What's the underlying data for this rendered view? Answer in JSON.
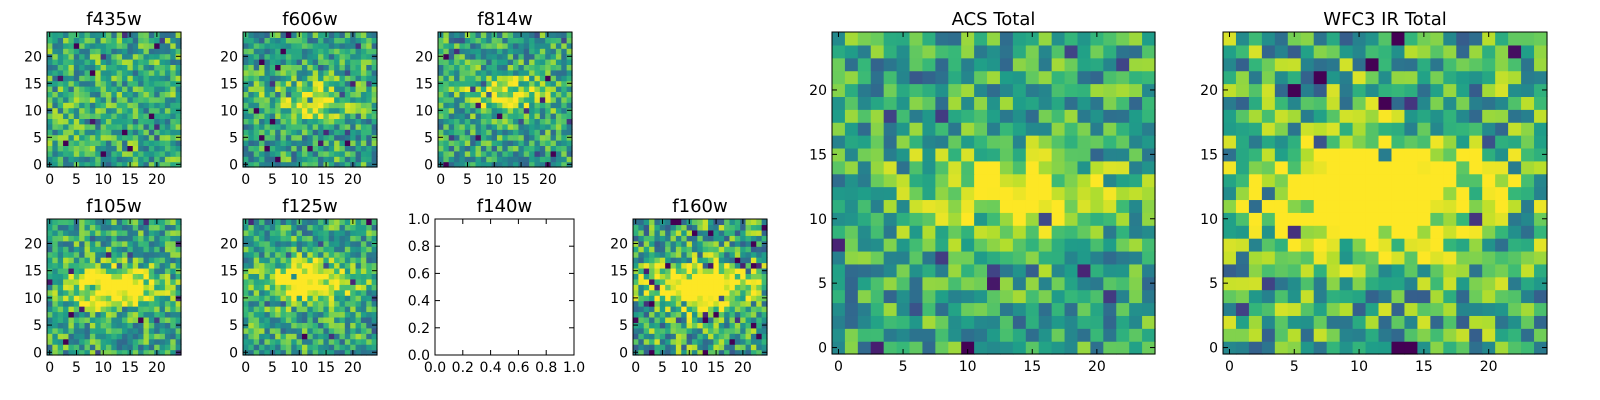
{
  "chart_data": [
    {
      "type": "heatmap",
      "title": "f435w",
      "colormap": "viridis",
      "pixels": [
        25,
        25
      ],
      "xticks": [
        0,
        5,
        10,
        15,
        20
      ],
      "yticks": [
        0,
        5,
        10,
        15,
        20
      ],
      "xlim": [
        -0.5,
        24.5
      ],
      "ylim": [
        -0.5,
        24.5
      ],
      "bright_center": null,
      "contrast": 0.25,
      "seed": 11
    },
    {
      "type": "heatmap",
      "title": "f606w",
      "colormap": "viridis",
      "pixels": [
        25,
        25
      ],
      "xticks": [
        0,
        5,
        10,
        15,
        20
      ],
      "yticks": [
        0,
        5,
        10,
        15,
        20
      ],
      "xlim": [
        -0.5,
        24.5
      ],
      "ylim": [
        -0.5,
        24.5
      ],
      "bright_center": [
        12,
        12
      ],
      "contrast": 0.35,
      "seed": 23
    },
    {
      "type": "heatmap",
      "title": "f814w",
      "colormap": "viridis",
      "pixels": [
        25,
        25
      ],
      "xticks": [
        0,
        5,
        10,
        15,
        20
      ],
      "yticks": [
        0,
        5,
        10,
        15,
        20
      ],
      "xlim": [
        -0.5,
        24.5
      ],
      "ylim": [
        -0.5,
        24.5
      ],
      "bright_center": [
        12,
        13
      ],
      "contrast": 0.35,
      "seed": 37
    },
    {
      "type": "heatmap",
      "title": "f105w",
      "colormap": "viridis",
      "pixels": [
        25,
        25
      ],
      "xticks": [
        0,
        5,
        10,
        15,
        20
      ],
      "yticks": [
        0,
        5,
        10,
        15,
        20
      ],
      "xlim": [
        -0.5,
        24.5
      ],
      "ylim": [
        -0.5,
        24.5
      ],
      "bright_center": [
        12,
        12
      ],
      "contrast": 0.6,
      "seed": 41
    },
    {
      "type": "heatmap",
      "title": "f125w",
      "colormap": "viridis",
      "pixels": [
        25,
        25
      ],
      "xticks": [
        0,
        5,
        10,
        15,
        20
      ],
      "yticks": [
        0,
        5,
        10,
        15,
        20
      ],
      "xlim": [
        -0.5,
        24.5
      ],
      "ylim": [
        -0.5,
        24.5
      ],
      "bright_center": [
        12,
        13
      ],
      "contrast": 0.6,
      "seed": 53
    },
    {
      "type": "heatmap",
      "title": "f140w",
      "empty": true,
      "xticks": [
        "0.0",
        "0.2",
        "0.4",
        "0.6",
        "0.8",
        "1.0"
      ],
      "yticks": [
        "0.0",
        "0.2",
        "0.4",
        "0.6",
        "0.8",
        "1.0"
      ],
      "xlim": [
        0,
        1
      ],
      "ylim": [
        0,
        1
      ]
    },
    {
      "type": "heatmap",
      "title": "f160w",
      "colormap": "viridis",
      "pixels": [
        25,
        25
      ],
      "xticks": [
        0,
        5,
        10,
        15,
        20
      ],
      "yticks": [
        0,
        5,
        10,
        15,
        20
      ],
      "xlim": [
        -0.5,
        24.5
      ],
      "ylim": [
        -0.5,
        24.5
      ],
      "bright_center": [
        12,
        12
      ],
      "contrast": 0.75,
      "seed": 67
    },
    {
      "type": "heatmap",
      "title": "ACS Total",
      "colormap": "viridis",
      "pixels": [
        25,
        25
      ],
      "xticks": [
        0,
        5,
        10,
        15,
        20
      ],
      "yticks": [
        0,
        5,
        10,
        15,
        20
      ],
      "xlim": [
        -0.5,
        24.5
      ],
      "ylim": [
        -0.5,
        24.5
      ],
      "bright_center": [
        13,
        12
      ],
      "contrast": 0.45,
      "seed": 79
    },
    {
      "type": "heatmap",
      "title": "WFC3 IR Total",
      "colormap": "viridis",
      "pixels": [
        25,
        25
      ],
      "xticks": [
        0,
        5,
        10,
        15,
        20
      ],
      "yticks": [
        0,
        5,
        10,
        15,
        20
      ],
      "xlim": [
        -0.5,
        24.5
      ],
      "ylim": [
        -0.5,
        24.5
      ],
      "bright_center": [
        11,
        12
      ],
      "contrast": 0.85,
      "seed": 97
    }
  ]
}
